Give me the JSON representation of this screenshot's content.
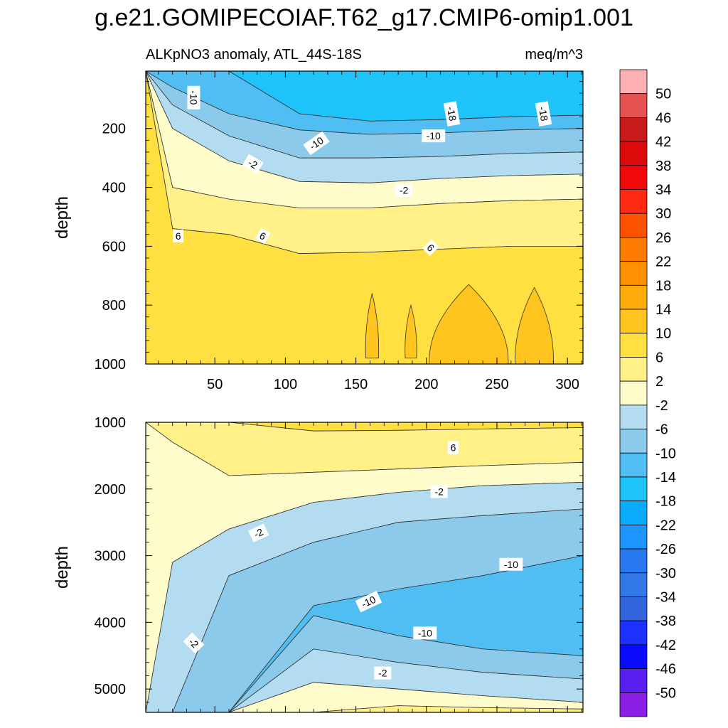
{
  "chart_data": {
    "type": "heatmap",
    "title": "g.e21.GOMIPECOIAF.T62_g17.CMIP6-omip1.001",
    "subtitle_left": "ALKpNO3 anomaly, ATL_44S-18S",
    "subtitle_right": "meq/m^3",
    "colorbar": {
      "levels": [
        "50",
        "46",
        "42",
        "38",
        "34",
        "30",
        "26",
        "22",
        "18",
        "14",
        "10",
        "6",
        "2",
        "-2",
        "-6",
        "-10",
        "-14",
        "-18",
        "-22",
        "-26",
        "-30",
        "-34",
        "-38",
        "-42",
        "-46",
        "-50"
      ],
      "colors": [
        "#fbb0b3",
        "#e55252",
        "#c81a1a",
        "#dc0a0a",
        "#f20a0a",
        "#ff2a12",
        "#ff5200",
        "#ff7a00",
        "#ff9000",
        "#ffac0a",
        "#ffc41e",
        "#ffe040",
        "#fff088",
        "#fffccc",
        "#b4dcf0",
        "#8ccaec",
        "#50bef3",
        "#1ec3fa",
        "#0aaaff",
        "#1e96ff",
        "#2878f0",
        "#3278e6",
        "#3264dc",
        "#1e32ff",
        "#0a0aff",
        "#5a1ef0",
        "#8c1ee6"
      ]
    },
    "panels": [
      {
        "name": "upper",
        "ylabel": "depth",
        "xlabel": "",
        "xlim": [
          1,
          311
        ],
        "ylim": [
          1000,
          5
        ],
        "xticks": [
          "50",
          "100",
          "150",
          "200",
          "250",
          "300"
        ],
        "xtick_values": [
          50,
          100,
          150,
          200,
          250,
          300
        ],
        "yticks": [
          "200",
          "400",
          "600",
          "800",
          "1000"
        ],
        "ytick_values": [
          200,
          400,
          600,
          800,
          1000
        ],
        "bands": [
          {
            "name": "-18 to -14",
            "color": "#1ec3fa",
            "top": [
              5,
              5,
              5,
              5,
              5,
              5,
              5,
              5
            ],
            "bottom": [
              5,
              5,
              5,
              150,
              175,
              170,
              160,
              155
            ]
          },
          {
            "name": "-14 to -10",
            "color": "#50bef3",
            "top": [
              5,
              5,
              5,
              150,
              175,
              170,
              160,
              155
            ],
            "bottom": [
              5,
              60,
              150,
              205,
              220,
              215,
              205,
              200
            ]
          },
          {
            "name": "-10 to -6",
            "color": "#8ccaec",
            "top": [
              5,
              60,
              150,
              205,
              220,
              215,
              205,
              200
            ],
            "bottom": [
              5,
              120,
              225,
              300,
              300,
              295,
              285,
              280
            ]
          },
          {
            "name": "-6 to -2",
            "color": "#b4dcf0",
            "top": [
              5,
              120,
              225,
              300,
              300,
              295,
              285,
              280
            ],
            "bottom": [
              5,
              200,
              310,
              380,
              385,
              370,
              360,
              355
            ]
          },
          {
            "name": "-2 to 2",
            "color": "#fffccc",
            "top": [
              5,
              200,
              310,
              380,
              385,
              370,
              360,
              355
            ],
            "bottom": [
              5,
              400,
              440,
              470,
              470,
              455,
              445,
              440
            ]
          },
          {
            "name": "2 to 6",
            "color": "#fff088",
            "top": [
              5,
              400,
              440,
              470,
              470,
              455,
              445,
              440
            ],
            "bottom": [
              5,
              540,
              560,
              625,
              620,
              610,
              600,
              600
            ]
          },
          {
            "name": "6 to 10",
            "color": "#ffe040",
            "top": [
              5,
              540,
              560,
              625,
              620,
              610,
              600,
              600
            ],
            "bottom": [
              1000,
              1000,
              1000,
              1000,
              1000,
              1000,
              1000,
              1000
            ]
          }
        ],
        "band_x": [
          1,
          20,
          60,
          110,
          160,
          210,
          260,
          311
        ],
        "patches": [
          {
            "name": "10-14 patch",
            "color": "#ffc41e",
            "x": [
              157,
              166
            ],
            "depth_top": 760,
            "depth_bottom": 980
          },
          {
            "name": "10-14 patch",
            "color": "#ffc41e",
            "x": [
              185,
              193
            ],
            "depth_top": 800,
            "depth_bottom": 980
          },
          {
            "name": "10-14 patch",
            "color": "#ffc41e",
            "x": [
              202,
              258
            ],
            "depth_top": 730,
            "depth_bottom": 1000
          },
          {
            "name": "10-14 patch",
            "color": "#ffc41e",
            "x": [
              263,
              290
            ],
            "depth_top": 740,
            "depth_bottom": 1000
          }
        ],
        "contour_labels": [
          {
            "text": "-10",
            "x": 35,
            "depth": 95,
            "rotation": 90
          },
          {
            "text": "-18",
            "x": 218,
            "depth": 150,
            "rotation": 80
          },
          {
            "text": "-18",
            "x": 283,
            "depth": 150,
            "rotation": 80
          },
          {
            "text": "-10",
            "x": 122,
            "depth": 250,
            "rotation": -35
          },
          {
            "text": "-10",
            "x": 205,
            "depth": 225,
            "rotation": 0
          },
          {
            "text": "-2",
            "x": 77,
            "depth": 320,
            "rotation": 30
          },
          {
            "text": "-2",
            "x": 184,
            "depth": 410,
            "rotation": 0
          },
          {
            "text": "6",
            "x": 24,
            "depth": 565,
            "rotation": 0
          },
          {
            "text": "6",
            "x": 84,
            "depth": 565,
            "rotation": 30
          },
          {
            "text": "6",
            "x": 203,
            "depth": 605,
            "rotation": 45
          }
        ]
      },
      {
        "name": "lower",
        "ylabel": "depth",
        "xlabel": "",
        "xlim": [
          1,
          311
        ],
        "ylim": [
          5350,
          1000
        ],
        "xticks": [],
        "xtick_values": [
          50,
          100,
          150,
          200,
          250,
          300
        ],
        "yticks": [
          "1000",
          "2000",
          "3000",
          "4000",
          "5000"
        ],
        "ytick_values": [
          1000,
          2000,
          3000,
          4000,
          5000
        ],
        "bands": [
          {
            "name": "6 to 10",
            "color": "#ffe040",
            "top": [
              1000,
              1000,
              1000,
              1000,
              1000,
              1000,
              1000
            ],
            "bottom": [
              1000,
              1000,
              1000,
              1130,
              1120,
              1100,
              1080
            ]
          },
          {
            "name": "2 to 6",
            "color": "#fff088",
            "top": [
              1000,
              1000,
              1000,
              1130,
              1120,
              1100,
              1080
            ],
            "bottom": [
              1000,
              1300,
              1800,
              1750,
              1700,
              1650,
              1600
            ]
          },
          {
            "name": "-2 to 2",
            "color": "#fffccc",
            "top": [
              1000,
              1300,
              1800,
              1750,
              1700,
              1650,
              1600
            ],
            "bottom": [
              5350,
              3100,
              2600,
              2200,
              2050,
              1950,
              1900
            ]
          },
          {
            "name": "-6 to -2",
            "color": "#b4dcf0",
            "top": [
              5350,
              3100,
              2600,
              2200,
              2050,
              1950,
              1900
            ],
            "bottom": [
              5350,
              5350,
              3300,
              2800,
              2500,
              2400,
              2300
            ]
          },
          {
            "name": "-10 to -6",
            "color": "#8ccaec",
            "top": [
              5350,
              5350,
              3300,
              2800,
              2500,
              2400,
              2300
            ],
            "bottom": [
              5350,
              5350,
              5350,
              3750,
              3500,
              3300,
              3000
            ]
          },
          {
            "name": "-14 to -10",
            "color": "#50bef3",
            "top": [
              5350,
              5350,
              5350,
              3750,
              3500,
              3300,
              3000
            ],
            "bottom": [
              5350,
              5350,
              5350,
              3900,
              4200,
              4400,
              4500
            ]
          },
          {
            "name": "-10 to -6",
            "color": "#8ccaec",
            "top": [
              5350,
              5350,
              5350,
              3900,
              4200,
              4400,
              4500
            ],
            "bottom": [
              5350,
              5350,
              5350,
              4400,
              4600,
              4750,
              4850
            ]
          },
          {
            "name": "-6 to -2",
            "color": "#b4dcf0",
            "top": [
              5350,
              5350,
              5350,
              4400,
              4600,
              4750,
              4850
            ],
            "bottom": [
              5350,
              5350,
              5350,
              4900,
              5000,
              5100,
              5200
            ]
          },
          {
            "name": "-2 to 2",
            "color": "#fffccc",
            "top": [
              5350,
              5350,
              5350,
              4900,
              5000,
              5100,
              5200
            ],
            "bottom": [
              5350,
              5350,
              5350,
              5350,
              5250,
              5280,
              5300
            ]
          },
          {
            "name": "2 to 6",
            "color": "#fff088",
            "top": [
              5350,
              5350,
              5350,
              5350,
              5250,
              5280,
              5300
            ],
            "bottom": [
              5350,
              5350,
              5350,
              5350,
              5350,
              5350,
              5350
            ]
          }
        ],
        "band_x": [
          1,
          20,
          60,
          120,
          180,
          240,
          311
        ],
        "patches": [],
        "contour_labels": [
          {
            "text": "6",
            "x": 219,
            "depth": 1380,
            "rotation": 0
          },
          {
            "text": "-2",
            "x": 209,
            "depth": 2040,
            "rotation": 0
          },
          {
            "text": "-2",
            "x": 81,
            "depth": 2660,
            "rotation": -25
          },
          {
            "text": "-10",
            "x": 260,
            "depth": 3130,
            "rotation": 0
          },
          {
            "text": "-10",
            "x": 159,
            "depth": 3690,
            "rotation": -25
          },
          {
            "text": "-10",
            "x": 199,
            "depth": 4160,
            "rotation": 0
          },
          {
            "text": "-2",
            "x": 35,
            "depth": 4310,
            "rotation": 45
          },
          {
            "text": "-2",
            "x": 169,
            "depth": 4760,
            "rotation": 0
          }
        ]
      }
    ]
  }
}
